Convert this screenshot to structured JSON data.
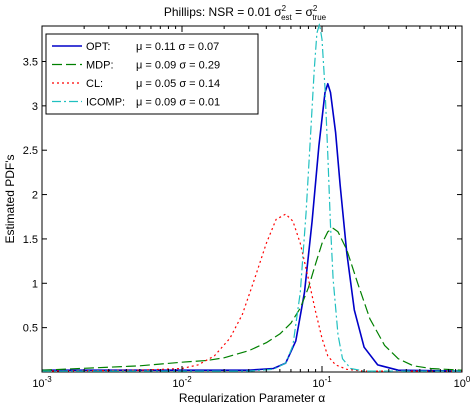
{
  "chart_data": {
    "type": "line",
    "title_prefix": "Phillips: NSR = 0.01",
    "title_math": {
      "sigma": "σ",
      "sup": "2",
      "est": "est",
      "equals": "=",
      "true": "true"
    },
    "xlabel": "Regularization Parameter α",
    "ylabel": "Estimated PDF's",
    "x_scale": "log",
    "xlim": [
      0.001,
      1
    ],
    "ylim": [
      0,
      3.9
    ],
    "x_ticks": [
      {
        "value": 0.001,
        "base": "10",
        "exp": "-3"
      },
      {
        "value": 0.01,
        "base": "10",
        "exp": "-2"
      },
      {
        "value": 0.1,
        "base": "10",
        "exp": "-1"
      },
      {
        "value": 1,
        "base": "10",
        "exp": "0"
      }
    ],
    "y_ticks": [
      {
        "value": 0.5,
        "label": "0.5"
      },
      {
        "value": 1,
        "label": "1"
      },
      {
        "value": 1.5,
        "label": "1.5"
      },
      {
        "value": 2,
        "label": "2"
      },
      {
        "value": 2.5,
        "label": "2.5"
      },
      {
        "value": 3,
        "label": "3"
      },
      {
        "value": 3.5,
        "label": "3.5"
      }
    ],
    "grid": false,
    "legend_position": "top-left",
    "series": [
      {
        "name": "OPT:",
        "stats": "μ = 0.11 σ = 0.07",
        "color": "#0000c8",
        "dash": "",
        "width": 1.6,
        "x": [
          0.001,
          0.03,
          0.045,
          0.055,
          0.065,
          0.075,
          0.085,
          0.095,
          0.105,
          0.11,
          0.115,
          0.125,
          0.135,
          0.15,
          0.17,
          0.2,
          0.25,
          0.35,
          1
        ],
        "y": [
          0.02,
          0.02,
          0.04,
          0.1,
          0.35,
          0.9,
          1.7,
          2.55,
          3.15,
          3.25,
          3.15,
          2.7,
          2.1,
          1.35,
          0.7,
          0.28,
          0.08,
          0.02,
          0.01
        ]
      },
      {
        "name": "MDP:",
        "stats": "μ = 0.09 σ = 0.29",
        "color": "#008000",
        "dash": "10,4",
        "width": 1.2,
        "x": [
          0.001,
          0.005,
          0.01,
          0.015,
          0.02,
          0.03,
          0.04,
          0.05,
          0.06,
          0.07,
          0.08,
          0.09,
          0.1,
          0.11,
          0.12,
          0.13,
          0.15,
          0.18,
          0.22,
          0.28,
          0.35,
          0.45,
          0.6,
          1
        ],
        "y": [
          0.02,
          0.07,
          0.11,
          0.13,
          0.16,
          0.24,
          0.33,
          0.43,
          0.55,
          0.72,
          0.95,
          1.22,
          1.45,
          1.58,
          1.62,
          1.58,
          1.38,
          1.0,
          0.6,
          0.3,
          0.15,
          0.07,
          0.04,
          0.02
        ]
      },
      {
        "name": "CL:",
        "stats": "μ = 0.05 σ = 0.14",
        "color": "#ff0000",
        "dash": "2,3",
        "width": 1.2,
        "x": [
          0.001,
          0.005,
          0.01,
          0.013,
          0.017,
          0.022,
          0.027,
          0.033,
          0.04,
          0.047,
          0.055,
          0.062,
          0.07,
          0.08,
          0.09,
          0.1,
          0.11,
          0.125,
          0.15,
          0.2,
          0.3,
          1
        ],
        "y": [
          0.01,
          0.02,
          0.04,
          0.08,
          0.18,
          0.38,
          0.65,
          1.05,
          1.45,
          1.72,
          1.78,
          1.7,
          1.45,
          1.05,
          0.68,
          0.38,
          0.18,
          0.08,
          0.03,
          0.01,
          0.01,
          0.01
        ]
      },
      {
        "name": "ICOMP:",
        "stats": "μ = 0.09 σ = 0.01",
        "color": "#20c0c0",
        "dash": "9,3,2,3",
        "width": 1.2,
        "x": [
          0.001,
          0.03,
          0.045,
          0.055,
          0.062,
          0.07,
          0.077,
          0.083,
          0.088,
          0.092,
          0.096,
          0.1,
          0.105,
          0.11,
          0.115,
          0.12,
          0.13,
          0.14,
          0.16,
          0.2,
          1
        ],
        "y": [
          0.01,
          0.01,
          0.03,
          0.1,
          0.3,
          0.9,
          1.8,
          2.7,
          3.4,
          3.82,
          3.92,
          3.75,
          3.2,
          2.45,
          1.65,
          1.05,
          0.42,
          0.15,
          0.04,
          0.01,
          0.01
        ]
      }
    ]
  }
}
